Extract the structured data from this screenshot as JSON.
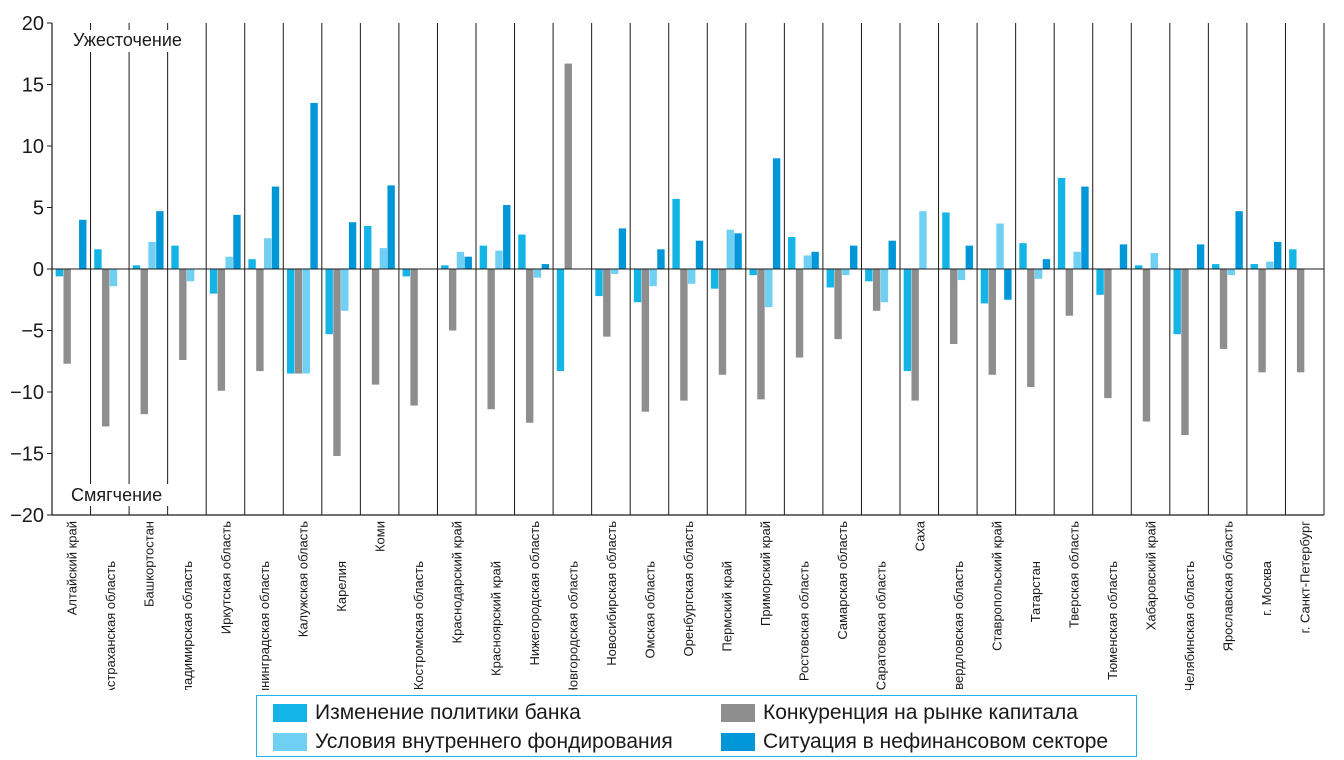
{
  "chart_data": {
    "type": "bar",
    "title": "",
    "xlabel": "",
    "ylabel": "",
    "ylim": [
      -20,
      20
    ],
    "yticks": [
      -20,
      -15,
      -10,
      -5,
      0,
      5,
      10,
      15,
      20
    ],
    "ytick_labels": [
      "−20",
      "−15",
      "−10",
      "−5",
      "0",
      "5",
      "10",
      "15",
      "20"
    ],
    "grid": "vertical",
    "legend_position": "bottom",
    "annotations": {
      "top": "Ужесточение",
      "bottom": "Смягчение"
    },
    "categories": [
      "Алтайский край",
      "Астраханская область",
      "Башкортостан",
      "Владимирская область",
      "Иркутская область",
      "Калининградская область",
      "Калужская область",
      "Карелия",
      "Коми",
      "Костромская область",
      "Краснодарский край",
      "Красноярский край",
      "Нижегородская область",
      "Новгородская область",
      "Новосибирская область",
      "Омская область",
      "Оренбургская область",
      "Пермский край",
      "Приморский край",
      "Ростовская область",
      "Самарская область",
      "Саратовская область",
      "Саха",
      "Свердловская область",
      "Ставропольский край",
      "Татарстан",
      "Тверская область",
      "Тюменская область",
      "Хабаровский край",
      "Челябинская область",
      "Ярославская область",
      "г. Москва",
      "г. Санкт-Петербург"
    ],
    "series": [
      {
        "name": "Изменение политики банка",
        "color": "#12b5e5",
        "values": [
          -0.6,
          1.6,
          0.3,
          1.9,
          -2.0,
          0.8,
          -8.5,
          -5.3,
          3.5,
          -0.6,
          0.3,
          1.9,
          2.8,
          -8.3,
          -2.2,
          -2.7,
          5.7,
          -1.6,
          -0.5,
          2.6,
          -1.5,
          -1.0,
          -8.3,
          4.6,
          -2.8,
          2.1,
          7.4,
          -2.1,
          0.3,
          -5.3,
          0.4,
          0.4,
          1.6
        ]
      },
      {
        "name": "Конкуренция на рынке капитала",
        "color": "#8e8e8e",
        "values": [
          -7.7,
          -12.8,
          -11.8,
          -7.4,
          -9.9,
          -8.3,
          -8.5,
          -15.2,
          -9.4,
          -11.1,
          -5.0,
          -11.4,
          -12.5,
          16.7,
          -5.5,
          -11.6,
          -10.7,
          -8.6,
          -10.6,
          -7.2,
          -5.7,
          -3.4,
          -10.7,
          -6.1,
          -8.6,
          -9.6,
          -3.8,
          -10.5,
          -12.4,
          -13.5,
          -6.5,
          -8.4,
          -8.4
        ]
      },
      {
        "name": "Условия внутреннего фондирования",
        "color": "#6fd0f3",
        "values": [
          0,
          -1.4,
          2.2,
          -1.0,
          1.0,
          2.5,
          -8.5,
          -3.4,
          1.7,
          0,
          1.4,
          1.5,
          -0.7,
          0,
          -0.4,
          -1.4,
          -1.2,
          3.2,
          -3.1,
          1.1,
          -0.5,
          -2.7,
          4.7,
          -0.9,
          3.7,
          -0.8,
          1.4,
          0,
          1.3,
          0,
          -0.5,
          0.6,
          0
        ]
      },
      {
        "name": "Ситуация в нефинансовом секторе",
        "color": "#0097d9",
        "values": [
          4.0,
          0,
          4.7,
          0,
          4.4,
          6.7,
          13.5,
          3.8,
          6.8,
          0,
          1.0,
          5.2,
          0.4,
          0,
          3.3,
          1.6,
          2.3,
          2.9,
          9.0,
          1.4,
          1.9,
          2.3,
          0,
          1.9,
          -2.5,
          0.8,
          6.7,
          2.0,
          0,
          2.0,
          4.7,
          2.2,
          0
        ]
      }
    ]
  }
}
